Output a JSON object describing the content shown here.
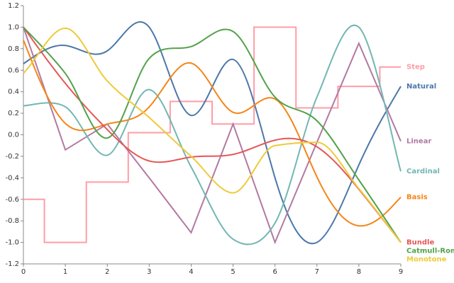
{
  "chart_data": {
    "type": "line",
    "x": [
      0,
      1,
      2,
      3,
      4,
      5,
      6,
      7,
      8,
      9
    ],
    "xlim": [
      0,
      9
    ],
    "xticks": [
      0,
      1,
      2,
      3,
      4,
      5,
      6,
      7,
      8,
      9
    ],
    "ylim": [
      -1.2,
      1.2
    ],
    "yticks": [
      {
        "value": -1.2,
        "label": "-1.2"
      },
      {
        "value": -1,
        "label": "-1.0"
      },
      -0.8,
      -0.6,
      -0.4,
      -0.2,
      {
        "value": 0,
        "label": "0.0"
      },
      0.2,
      0.4,
      0.6,
      0.8,
      {
        "value": 1,
        "label": "1.0"
      },
      1.2
    ],
    "grid": false,
    "series": [
      {
        "name": "Step",
        "color": "#ff9da6",
        "interpolate": "step",
        "values": [
          -0.6,
          -1.0,
          -0.44,
          0.02,
          0.31,
          0.1,
          1.0,
          0.25,
          0.45,
          0.63
        ]
      },
      {
        "name": "Natural",
        "color": "#4c78a8",
        "interpolate": "natural",
        "values": [
          0.66,
          0.83,
          0.78,
          1.0,
          0.18,
          0.7,
          -0.4,
          -1.0,
          -0.28,
          0.45
        ]
      },
      {
        "name": "Linear",
        "color": "#b279a2",
        "interpolate": "linear",
        "values": [
          1.0,
          -0.14,
          0.1,
          -0.4,
          -0.91,
          0.1,
          -1.0,
          -0.07,
          0.85,
          -0.06
        ]
      },
      {
        "name": "Cardinal",
        "color": "#72b7b2",
        "interpolate": "cardinal",
        "values": [
          0.27,
          0.26,
          -0.19,
          0.42,
          -0.3,
          -0.97,
          -0.82,
          0.35,
          1.0,
          -0.34
        ]
      },
      {
        "name": "Basis",
        "color": "#f58518",
        "interpolate": "basis",
        "values": [
          0.88,
          -0.1,
          0.15,
          0.1,
          1.0,
          -0.1,
          0.65,
          -0.5,
          -1.0,
          -0.58
        ]
      },
      {
        "name": "Bundle",
        "color": "#e45756",
        "interpolate": "bundle",
        "values": [
          1.0,
          0.4,
          -0.05,
          -0.45,
          -0.22,
          -0.25,
          0.05,
          0.05,
          -0.45,
          -1.0
        ]
      },
      {
        "name": "Catmull-Rom",
        "color": "#54a24b",
        "interpolate": "catmull-rom",
        "values": [
          1.0,
          0.57,
          -0.03,
          0.71,
          0.82,
          0.96,
          0.35,
          0.13,
          -0.42,
          -1.0
        ]
      },
      {
        "name": "Monotone",
        "color": "#eeca3b",
        "interpolate": "monotone",
        "values": [
          0.57,
          0.99,
          0.5,
          0.16,
          -0.2,
          -0.54,
          -0.1,
          -0.07,
          -0.5,
          -1.0
        ]
      }
    ]
  }
}
